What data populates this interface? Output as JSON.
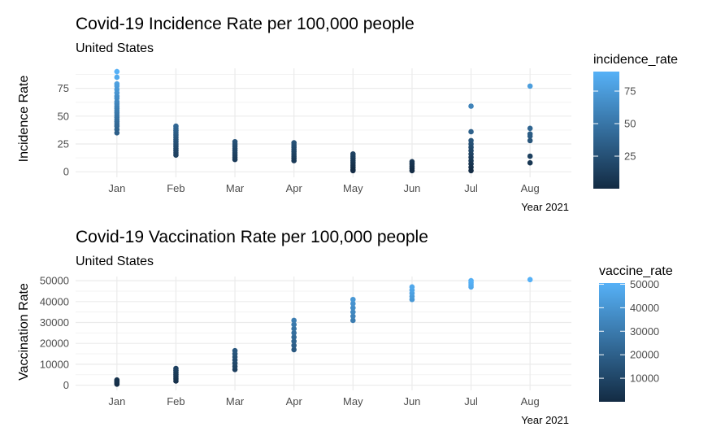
{
  "chart_data": [
    {
      "type": "scatter",
      "title": "Covid-19 Incidence Rate per 100,000 people",
      "subtitle": "United States",
      "xlabel": "Year 2021",
      "ylabel": "Incidence Rate",
      "categories": [
        "Jan",
        "Feb",
        "Mar",
        "Apr",
        "May",
        "Jun",
        "Jul",
        "Aug"
      ],
      "ylim": [
        -5,
        93
      ],
      "yticks": [
        0,
        25,
        50,
        75
      ],
      "color_scale": {
        "name": "incidence_rate",
        "min": 0,
        "max": 90,
        "ticks": [
          25,
          50,
          75
        ],
        "low": "#132B43",
        "high": "#56B1F7"
      },
      "grid": true,
      "legend_position": "right",
      "points": {
        "Jan": [
          90,
          85,
          79,
          77,
          74,
          71,
          68,
          66,
          63,
          61,
          59,
          57,
          55,
          53,
          51,
          49,
          47,
          45,
          43,
          41,
          38,
          35
        ],
        "Feb": [
          41,
          39,
          37,
          35,
          33,
          31,
          29,
          27,
          25,
          23,
          21,
          19,
          17,
          15
        ],
        "Mar": [
          27,
          25,
          23,
          21,
          19,
          17,
          15,
          13,
          11
        ],
        "Apr": [
          26,
          24,
          22,
          20,
          18,
          16,
          14,
          12,
          10
        ],
        "May": [
          16,
          14,
          12,
          10,
          8,
          6,
          4,
          2,
          1
        ],
        "Jun": [
          9,
          7,
          5,
          3,
          1
        ],
        "Jul": [
          59,
          36,
          28,
          25,
          22,
          19,
          16,
          13,
          10,
          7,
          4,
          1
        ],
        "Aug": [
          77,
          39,
          34,
          32,
          28,
          14,
          8
        ]
      }
    },
    {
      "type": "scatter",
      "title": "Covid-19 Vaccination Rate per 100,000 people",
      "subtitle": "United States",
      "xlabel": "Year 2021",
      "ylabel": "Vaccination Rate",
      "categories": [
        "Jan",
        "Feb",
        "Mar",
        "Apr",
        "May",
        "Jun",
        "Jul",
        "Aug"
      ],
      "ylim": [
        -2500,
        52000
      ],
      "yticks": [
        0,
        10000,
        20000,
        30000,
        40000,
        50000
      ],
      "color_scale": {
        "name": "vaccine_rate",
        "min": 0,
        "max": 50500,
        "ticks": [
          10000,
          20000,
          30000,
          40000,
          50000
        ],
        "low": "#132B43",
        "high": "#56B1F7"
      },
      "grid": true,
      "legend_position": "right",
      "points": {
        "Jan": [
          500,
          1000,
          1500,
          2000,
          2500
        ],
        "Feb": [
          2000,
          3000,
          4000,
          5000,
          6000,
          7000,
          8000
        ],
        "Mar": [
          7500,
          9000,
          10500,
          12000,
          13500,
          15000,
          16500
        ],
        "Apr": [
          17000,
          19000,
          21000,
          23000,
          25000,
          27000,
          29000,
          31000
        ],
        "May": [
          31000,
          33000,
          35000,
          37000,
          39000,
          41000
        ],
        "Jun": [
          41000,
          42500,
          44000,
          45500,
          47000
        ],
        "Jul": [
          47000,
          48000,
          49000,
          50000
        ],
        "Aug": [
          50500
        ]
      }
    }
  ]
}
